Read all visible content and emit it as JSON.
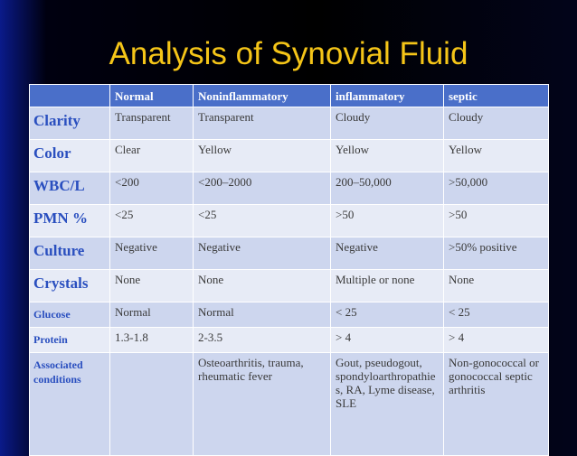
{
  "title": "Analysis of Synovial Fluid",
  "table": {
    "columns": [
      "Normal",
      "Noninflammatory",
      "inflammatory",
      "septic"
    ],
    "rows": [
      {
        "label": "Clarity",
        "cells": [
          "Transparent",
          "Transparent",
          "Cloudy",
          "Cloudy"
        ]
      },
      {
        "label": "Color",
        "cells": [
          "Clear",
          "Yellow",
          "Yellow",
          "Yellow"
        ]
      },
      {
        "label": "WBC/L",
        "cells": [
          "<200",
          "<200–2000",
          "200–50,000",
          ">50,000"
        ]
      },
      {
        "label": "PMN %",
        "cells": [
          "<25",
          "<25",
          ">50",
          ">50"
        ]
      },
      {
        "label": "Culture",
        "cells": [
          "Negative",
          "Negative",
          "Negative",
          ">50% positive"
        ]
      },
      {
        "label": "Crystals",
        "cells": [
          "None",
          "None",
          "Multiple or none",
          "None"
        ]
      },
      {
        "label": "Glucose",
        "cells": [
          "Normal",
          "Normal",
          "< 25",
          "< 25"
        ]
      },
      {
        "label": "Protein",
        "cells": [
          "1.3-1.8",
          "2-3.5",
          "> 4",
          "> 4"
        ]
      },
      {
        "label": "Associated conditions",
        "cells": [
          null,
          "Osteoarthritis, trauma, rheumatic fever",
          "Gout, pseudogout, spondyloarthropathies, RA, Lyme disease, SLE",
          "Non-gonococcal or gonococcal septic arthritis"
        ]
      }
    ]
  }
}
